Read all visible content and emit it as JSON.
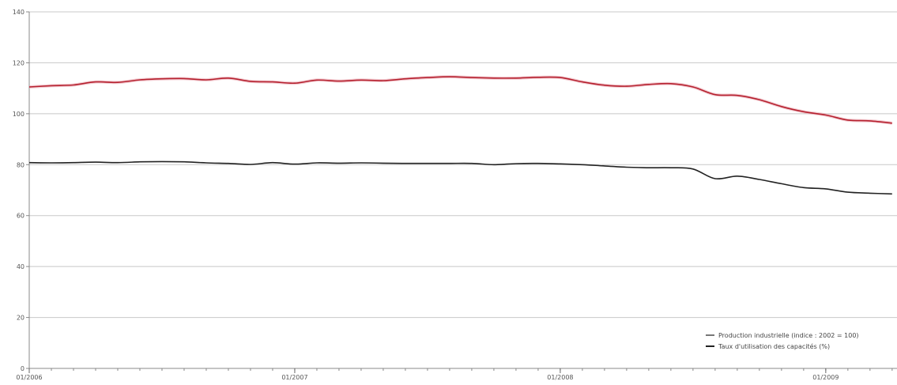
{
  "chart_data": {
    "type": "line",
    "title": "",
    "xlabel": "",
    "ylabel": "",
    "ylim": [
      0,
      140
    ],
    "y_ticks": [
      "0",
      "20",
      "40",
      "60",
      "80",
      "100",
      "120",
      "140"
    ],
    "x_ticks": [
      "01/2006",
      "01/2007",
      "01/2008",
      "01/2009"
    ],
    "x": [
      "01/2006",
      "02/2006",
      "03/2006",
      "04/2006",
      "05/2006",
      "06/2006",
      "07/2006",
      "08/2006",
      "09/2006",
      "10/2006",
      "11/2006",
      "12/2006",
      "01/2007",
      "02/2007",
      "03/2007",
      "04/2007",
      "05/2007",
      "06/2007",
      "07/2007",
      "08/2007",
      "09/2007",
      "10/2007",
      "11/2007",
      "12/2007",
      "01/2008",
      "02/2008",
      "03/2008",
      "04/2008",
      "05/2008",
      "06/2008",
      "07/2008",
      "08/2008",
      "09/2008",
      "10/2008",
      "11/2008",
      "12/2008",
      "01/2009",
      "02/2009",
      "03/2009",
      "04/2009"
    ],
    "series": [
      {
        "name": "Production industrielle (indice : 2002 = 100)",
        "color": "#b5202e",
        "values": [
          110.5,
          111.0,
          111.3,
          112.5,
          112.3,
          113.3,
          113.7,
          113.8,
          113.3,
          114.0,
          112.7,
          112.5,
          112.0,
          113.2,
          112.8,
          113.2,
          113.0,
          113.7,
          114.2,
          114.5,
          114.2,
          114.0,
          114.0,
          114.3,
          114.2,
          112.5,
          111.2,
          110.8,
          111.5,
          111.8,
          110.5,
          107.5,
          107.2,
          105.5,
          102.8,
          100.8,
          99.5,
          97.5,
          97.2,
          96.3
        ]
      },
      {
        "name": "Taux d'utilisation des capacités (%)",
        "color": "#222222",
        "values": [
          80.8,
          80.7,
          80.8,
          81.0,
          80.8,
          81.1,
          81.2,
          81.1,
          80.7,
          80.5,
          80.1,
          80.8,
          80.2,
          80.7,
          80.6,
          80.7,
          80.6,
          80.5,
          80.5,
          80.5,
          80.5,
          80.0,
          80.4,
          80.5,
          80.3,
          80.0,
          79.5,
          79.0,
          78.8,
          78.8,
          78.3,
          74.5,
          75.5,
          74.2,
          72.5,
          71.0,
          70.5,
          69.2,
          68.8,
          68.5
        ]
      }
    ],
    "grid": true,
    "legend_position": "bottom-right"
  }
}
